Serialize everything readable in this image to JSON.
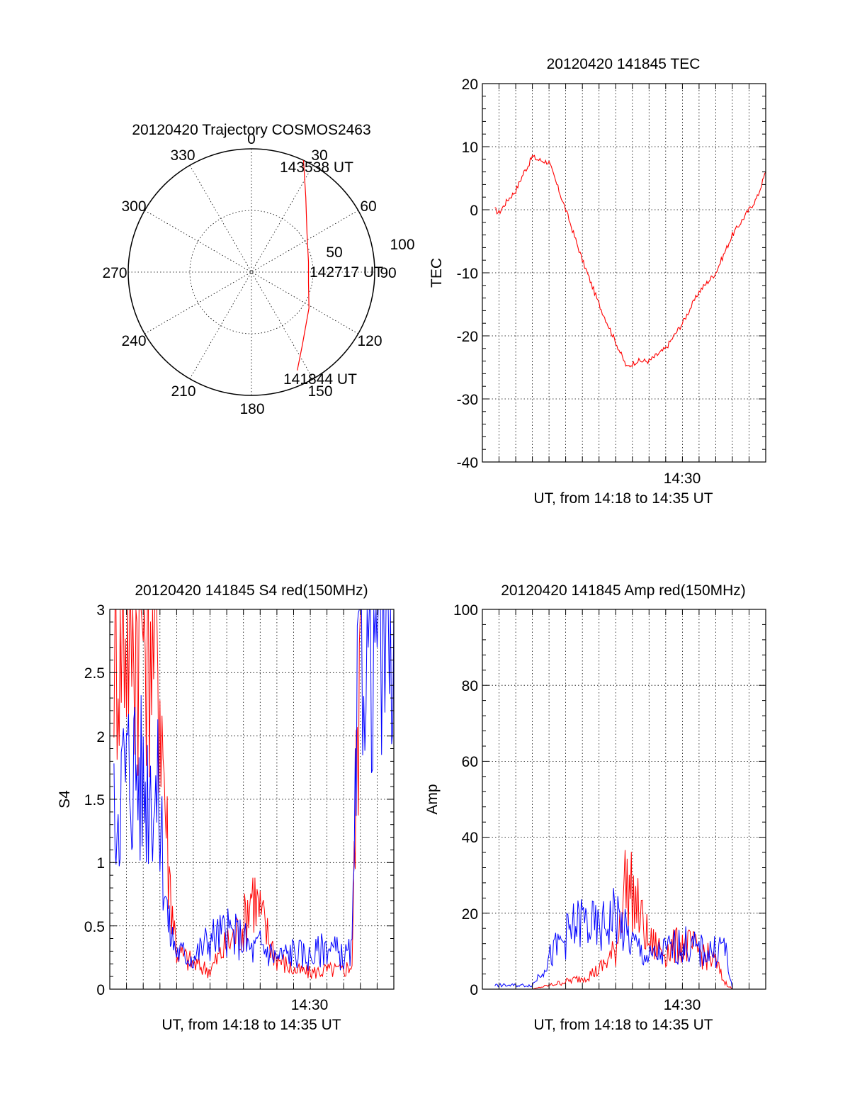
{
  "chart_data": [
    {
      "type": "polar",
      "title": "20120420 Trajectory COSMOS2463",
      "angle_labels": [
        "0",
        "30",
        "60",
        "90",
        "120",
        "150",
        "180",
        "210",
        "240",
        "270",
        "300",
        "330"
      ],
      "radius_labels": [
        "50",
        "100"
      ],
      "rlim": [
        0,
        100
      ],
      "series": [
        {
          "color": "#ff0000",
          "points": [
            [
              25,
              100
            ],
            [
              36,
              75
            ],
            [
              55,
              55
            ],
            [
              80,
              47
            ],
            [
              100,
              47
            ],
            [
              122,
              55
            ],
            [
              145,
              72
            ],
            [
              155,
              88
            ]
          ]
        }
      ],
      "annotations": [
        {
          "text": "143538 UT",
          "angle": 27,
          "r": 87
        },
        {
          "text": "142717 UT",
          "angle": 90,
          "r": 45
        },
        {
          "text": "141844 UT",
          "angle": 150,
          "r": 88
        }
      ],
      "grid": true
    },
    {
      "type": "line",
      "title": "20120420 141845 TEC",
      "xlabel": "UT, from 14:18 to 14:35 UT",
      "ylabel": "TEC",
      "xlim": [
        "14:18",
        "14:35"
      ],
      "ylim": [
        -40,
        20
      ],
      "yticks": [
        "20",
        "10",
        "0",
        "-10",
        "-20",
        "-30",
        "-40"
      ],
      "xtick_labels": [
        {
          "x": "14:30",
          "label": "14:30"
        }
      ],
      "grid": true,
      "series": [
        {
          "color": "#ff0000",
          "x": [
            "14:18:45",
            "14:19:00",
            "14:19:30",
            "14:20:00",
            "14:20:30",
            "14:20:45",
            "14:21:00",
            "14:21:15",
            "14:22:00",
            "14:23:00",
            "14:24:00",
            "14:25:00",
            "14:26:00",
            "14:26:40",
            "14:27:15",
            "14:28:00",
            "14:28:30",
            "14:29:00",
            "14:30:00",
            "14:31:00",
            "14:32:00",
            "14:33:00",
            "14:33:30",
            "14:34:00",
            "14:34:30",
            "14:35:00"
          ],
          "values": [
            0,
            -0.5,
            1.5,
            3,
            6,
            7,
            8.5,
            8,
            7.5,
            0,
            -8,
            -15,
            -21,
            -25,
            -24,
            -24,
            -23,
            -22,
            -18,
            -13,
            -10,
            -4,
            -2,
            0,
            2,
            6
          ]
        }
      ]
    },
    {
      "type": "line",
      "title": "20120420 141845 S4 red(150MHz)",
      "xlabel": "UT, from 14:18 to 14:35 UT",
      "ylabel": "S4",
      "xlim": [
        "14:18",
        "14:35"
      ],
      "ylim": [
        0,
        3
      ],
      "yticks": [
        "3",
        "2.5",
        "2",
        "1.5",
        "1",
        "0.5",
        "0"
      ],
      "xtick_labels": [
        {
          "x": "14:30",
          "label": "14:30"
        }
      ],
      "grid": true,
      "series": [
        {
          "color": "#ff0000",
          "x": [
            "14:18:15",
            "14:18:30",
            "14:19:00",
            "14:19:30",
            "14:20:00",
            "14:20:30",
            "14:21:00",
            "14:21:30",
            "14:22:00",
            "14:23:00",
            "14:24:00",
            "14:25:00",
            "14:26:00",
            "14:26:30",
            "14:27:00",
            "14:27:30",
            "14:28:00",
            "14:29:00",
            "14:30:00",
            "14:31:00",
            "14:32:00",
            "14:32:30",
            "14:33:00"
          ],
          "values": [
            3,
            3,
            3,
            3,
            3,
            3,
            2.5,
            1,
            0.3,
            0.2,
            0.15,
            0.35,
            0.5,
            0.8,
            0.6,
            0.4,
            0.25,
            0.15,
            0.13,
            0.15,
            0.15,
            0.2,
            3
          ]
        },
        {
          "color": "#0000ff",
          "x": [
            "14:18:15",
            "14:18:30",
            "14:19:00",
            "14:19:30",
            "14:20:00",
            "14:20:30",
            "14:21:00",
            "14:21:30",
            "14:22:00",
            "14:23:00",
            "14:24:00",
            "14:25:00",
            "14:26:00",
            "14:26:30",
            "14:27:00",
            "14:27:30",
            "14:28:00",
            "14:29:00",
            "14:30:00",
            "14:31:00",
            "14:32:00",
            "14:32:30",
            "14:33:00",
            "14:34:00",
            "14:35:00"
          ],
          "values": [
            1.3,
            1.6,
            1.7,
            1.8,
            1.6,
            1.7,
            1.4,
            0.5,
            0.3,
            0.25,
            0.4,
            0.45,
            0.4,
            0.3,
            0.35,
            0.3,
            0.25,
            0.3,
            0.25,
            0.35,
            0.25,
            0.3,
            3,
            3,
            3
          ]
        }
      ]
    },
    {
      "type": "line",
      "title": "20120420 141845 Amp red(150MHz)",
      "xlabel": "UT, from 14:18 to 14:35 UT",
      "ylabel": "Amp",
      "xlim": [
        "14:18",
        "14:35"
      ],
      "ylim": [
        0,
        100
      ],
      "yticks": [
        "100",
        "80",
        "60",
        "40",
        "20",
        "0"
      ],
      "xtick_labels": [
        {
          "x": "14:30",
          "label": "14:30"
        }
      ],
      "grid": true,
      "series": [
        {
          "color": "#ff0000",
          "x": [
            "14:18:45",
            "14:21:00",
            "14:22:00",
            "14:23:00",
            "14:24:00",
            "14:25:00",
            "14:26:00",
            "14:26:30",
            "14:27:00",
            "14:28:00",
            "14:29:00",
            "14:30:00",
            "14:31:00",
            "14:32:00",
            "14:32:30",
            "14:33:00",
            "14:35:00"
          ],
          "values": [
            0,
            0,
            1,
            2,
            3,
            5,
            10,
            28,
            25,
            12,
            10,
            12,
            10,
            7,
            2,
            0,
            0
          ]
        },
        {
          "color": "#0000ff",
          "x": [
            "14:18:45",
            "14:21:00",
            "14:22:00",
            "14:23:00",
            "14:24:00",
            "14:25:00",
            "14:26:00",
            "14:26:30",
            "14:27:00",
            "14:28:00",
            "14:29:00",
            "14:30:00",
            "14:31:00",
            "14:32:00",
            "14:32:30",
            "14:33:00",
            "14:35:00"
          ],
          "values": [
            1,
            1,
            8,
            14,
            18,
            15,
            20,
            15,
            12,
            8,
            10,
            12,
            10,
            10,
            12,
            0,
            0
          ]
        }
      ]
    }
  ]
}
